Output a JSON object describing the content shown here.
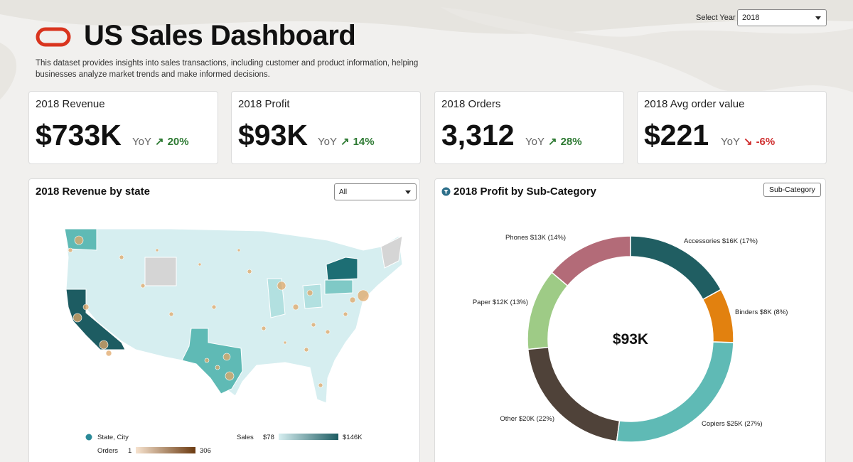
{
  "header": {
    "title": "US Sales Dashboard",
    "description": "This dataset provides insights into sales transactions, including customer and product information, helping businesses analyze market trends and make informed decisions.",
    "year_label": "Select Year",
    "year_value": "2018"
  },
  "kpis": [
    {
      "label": "2018 Revenue",
      "value": "$733K",
      "yoy_label": "YoY",
      "yoy_value": "20%",
      "direction": "up"
    },
    {
      "label": "2018 Profit",
      "value": "$93K",
      "yoy_label": "YoY",
      "yoy_value": "14%",
      "direction": "up"
    },
    {
      "label": "2018 Orders",
      "value": "3,312",
      "yoy_label": "YoY",
      "yoy_value": "28%",
      "direction": "up"
    },
    {
      "label": "2018 Avg order value",
      "value": "$221",
      "yoy_label": "YoY",
      "yoy_value": "-6%",
      "direction": "down"
    }
  ],
  "map_panel": {
    "title": "2018 Revenue by state",
    "filter_value": "All",
    "legend": {
      "series_label": "State, City",
      "orders_label": "Orders",
      "orders_min": "1",
      "orders_max": "306",
      "sales_label": "Sales",
      "sales_min": "$78",
      "sales_max": "$146K"
    },
    "colors": {
      "low": "#d6eef0",
      "high": "#1d5c62",
      "city": "#e0a768"
    }
  },
  "donut_panel": {
    "title": "2018 Profit by Sub-Category",
    "button_label": "Sub-Category",
    "center_value": "$93K"
  },
  "chart_data": {
    "type": "pie",
    "title": "2018 Profit by Sub-Category",
    "center_text": "$93K",
    "slices": [
      {
        "name": "Accessories",
        "value": 16,
        "label": "Accessories $16K (17%)",
        "color": "#205e62"
      },
      {
        "name": "Binders",
        "value": 8,
        "label": "Binders $8K (8%)",
        "color": "#e2810f"
      },
      {
        "name": "Copiers",
        "value": 25,
        "label": "Copiers $25K (27%)",
        "color": "#5fbab5"
      },
      {
        "name": "Other",
        "value": 20,
        "label": "Other $20K (22%)",
        "color": "#4f4239"
      },
      {
        "name": "Paper",
        "value": 12,
        "label": "Paper $12K (13%)",
        "color": "#9ecb86"
      },
      {
        "name": "Phones",
        "value": 13,
        "label": "Phones $13K (14%)",
        "color": "#b36b78"
      }
    ]
  }
}
